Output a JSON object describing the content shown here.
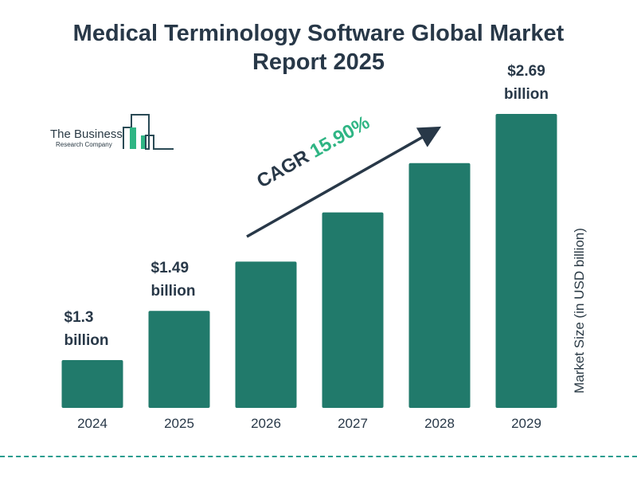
{
  "chart_data": {
    "type": "bar",
    "title": "Medical Terminology Software Global Market Report 2025",
    "title_lines": [
      "Medical Terminology Software Global Market",
      "Report 2025"
    ],
    "categories": [
      "2024",
      "2025",
      "2026",
      "2027",
      "2028",
      "2029"
    ],
    "values": [
      1.3,
      1.49,
      1.73,
      2.0,
      2.32,
      2.69
    ],
    "data_labels": [
      {
        "index": 0,
        "line1": "$1.3",
        "line2": "billion"
      },
      {
        "index": 1,
        "line1": "$1.49",
        "line2": "billion"
      },
      {
        "index": 5,
        "line1": "$2.69",
        "line2": "billion"
      }
    ],
    "ylabel": "Market Size (in USD billion)",
    "xlabel": "",
    "annotation": {
      "label": "CAGR",
      "value": "15.90%"
    },
    "grid": false,
    "colors": {
      "bar": "#217a6b",
      "text": "#283848",
      "cagr": "#2fb584",
      "dash": "#2a9d8f"
    }
  },
  "logo": {
    "line1": "The Business",
    "line2": "Research Company"
  }
}
